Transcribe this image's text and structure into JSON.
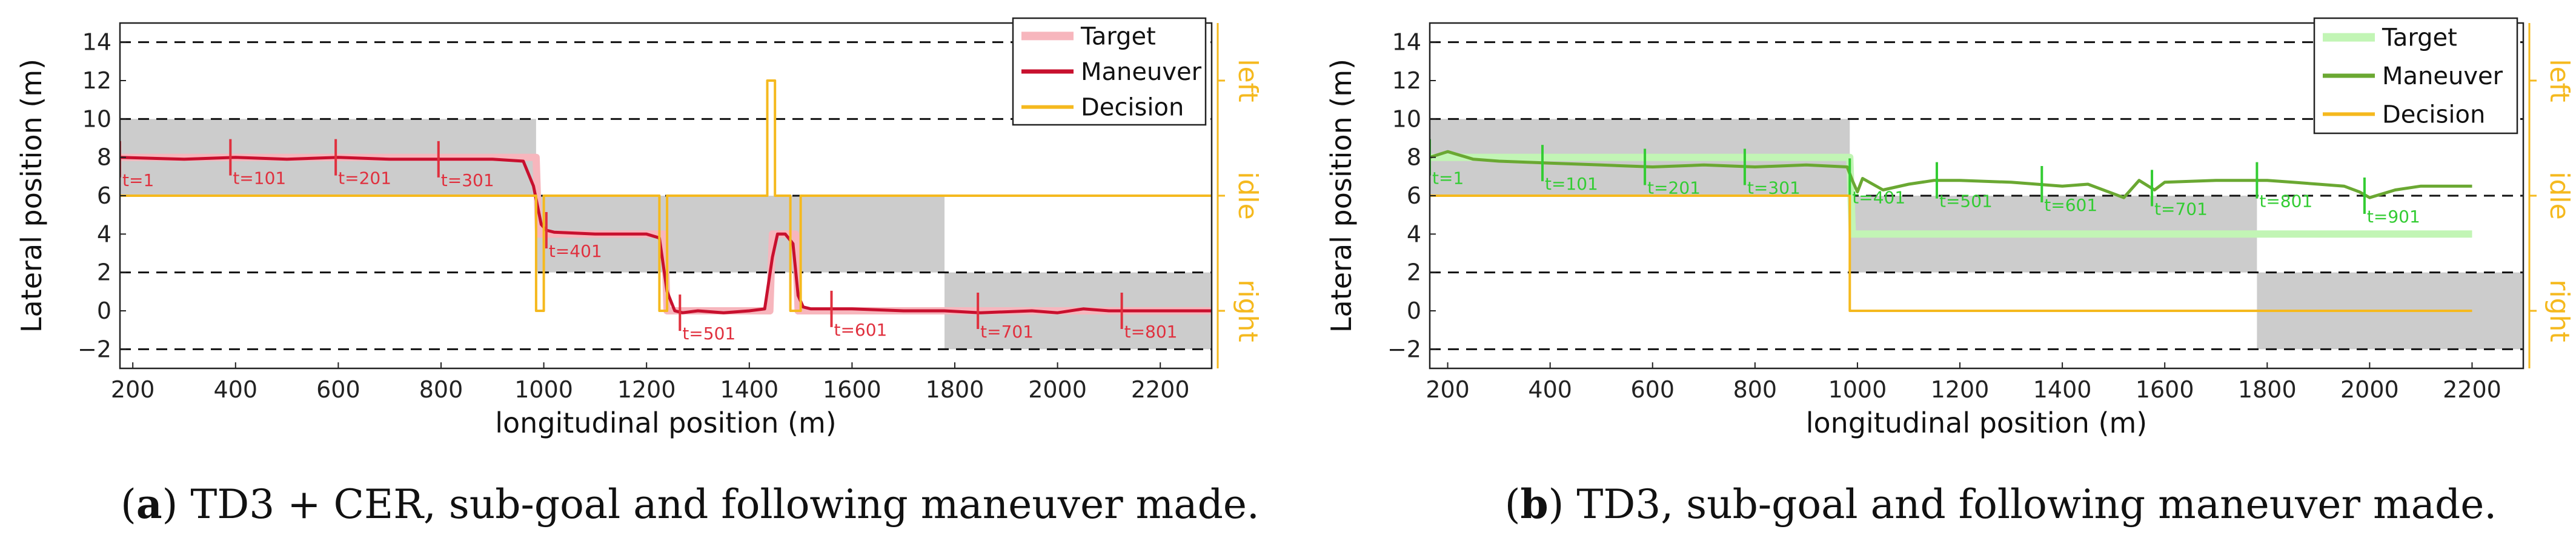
{
  "chart_data": [
    {
      "type": "line",
      "panel": "a",
      "caption_label": "a",
      "caption_text": "TD3 + CER, sub-goal and following maneuver made.",
      "xlabel": "longitudinal position (m)",
      "ylabel": "Lateral position (m)",
      "xlim": [
        175,
        2300
      ],
      "ylim": [
        -3,
        15
      ],
      "x_ticks": [
        200,
        400,
        600,
        800,
        1000,
        1200,
        1400,
        1600,
        1800,
        2000,
        2200
      ],
      "y_ticks": [
        -2,
        0,
        2,
        4,
        6,
        8,
        10,
        12,
        14
      ],
      "lane_lines": [
        -2,
        2,
        6,
        10,
        14
      ],
      "side_labels": [
        "left",
        "idle",
        "right"
      ],
      "legend": [
        "Target",
        "Maneuver",
        "Decision"
      ],
      "colors": {
        "target": "#f7b6bd",
        "maneuver": "#c8102e",
        "decision": "#f5b91e",
        "shade": "#cccccc",
        "tlabel": "#e0303e"
      },
      "shaded_regions": [
        {
          "x0": 175,
          "x1": 985,
          "y0": 6,
          "y1": 10
        },
        {
          "x0": 985,
          "x1": 1780,
          "y0": 2,
          "y1": 6
        },
        {
          "x0": 1780,
          "x1": 2300,
          "y0": -2,
          "y1": 2
        }
      ],
      "series": [
        {
          "name": "Target",
          "x": [
            175,
            985,
            990,
            1235,
            1240,
            1440,
            1445,
            1490,
            1495,
            2300
          ],
          "y": [
            8,
            8,
            4,
            4,
            0,
            0,
            4,
            4,
            0,
            0
          ]
        },
        {
          "name": "Maneuver",
          "x": [
            175,
            300,
            400,
            500,
            600,
            700,
            800,
            900,
            960,
            980,
            995,
            1005,
            1020,
            1100,
            1200,
            1225,
            1240,
            1255,
            1270,
            1300,
            1350,
            1400,
            1430,
            1445,
            1455,
            1470,
            1485,
            1495,
            1505,
            1520,
            1600,
            1700,
            1780,
            1850,
            1950,
            2000,
            2050,
            2100,
            2200,
            2300
          ],
          "y": [
            8.0,
            7.9,
            8.0,
            7.9,
            8.0,
            7.9,
            7.9,
            7.9,
            7.8,
            6.5,
            4.5,
            4.2,
            4.1,
            4.0,
            4.0,
            3.8,
            1.0,
            0.0,
            -0.1,
            0.0,
            -0.1,
            0.0,
            0.1,
            2.8,
            4.0,
            4.0,
            3.5,
            0.8,
            0.2,
            0.1,
            0.1,
            0.0,
            0.0,
            -0.1,
            0.0,
            -0.1,
            0.1,
            0.0,
            0.0,
            0.0
          ]
        },
        {
          "name": "Decision",
          "x": [
            175,
            985,
            985,
            1000,
            1000,
            1225,
            1225,
            1240,
            1240,
            1435,
            1435,
            1450,
            1450,
            1480,
            1480,
            1500,
            1500,
            2300
          ],
          "y": [
            6,
            6,
            0,
            0,
            6,
            6,
            0,
            0,
            6,
            6,
            12,
            12,
            6,
            6,
            0,
            0,
            6,
            6
          ]
        }
      ],
      "time_markers": [
        {
          "label": "t=1",
          "x": 175,
          "y": 7.9
        },
        {
          "label": "t=101",
          "x": 390,
          "y": 8.0
        },
        {
          "label": "t=201",
          "x": 595,
          "y": 8.0
        },
        {
          "label": "t=301",
          "x": 795,
          "y": 7.9
        },
        {
          "label": "t=401",
          "x": 1005,
          "y": 4.2
        },
        {
          "label": "t=501",
          "x": 1265,
          "y": -0.1
        },
        {
          "label": "t=601",
          "x": 1560,
          "y": 0.1
        },
        {
          "label": "t=701",
          "x": 1845,
          "y": 0.0
        },
        {
          "label": "t=801",
          "x": 2125,
          "y": 0.0
        }
      ]
    },
    {
      "type": "line",
      "panel": "b",
      "caption_label": "b",
      "caption_text": "TD3, sub-goal and following maneuver made.",
      "xlabel": "longitudinal position (m)",
      "ylabel": "Lateral position (m)",
      "xlim": [
        165,
        2300
      ],
      "ylim": [
        -3,
        15
      ],
      "x_ticks": [
        200,
        400,
        600,
        800,
        1000,
        1200,
        1400,
        1600,
        1800,
        2000,
        2200
      ],
      "y_ticks": [
        -2,
        0,
        2,
        4,
        6,
        8,
        10,
        12,
        14
      ],
      "lane_lines": [
        -2,
        2,
        6,
        10,
        14
      ],
      "side_labels": [
        "left",
        "idle",
        "right"
      ],
      "legend": [
        "Target",
        "Maneuver",
        "Decision"
      ],
      "colors": {
        "target": "#c2f5b5",
        "maneuver": "#6aa832",
        "decision": "#f5b91e",
        "shade": "#cccccc",
        "tlabel": "#33cc33"
      },
      "shaded_regions": [
        {
          "x0": 165,
          "x1": 985,
          "y0": 6,
          "y1": 10
        },
        {
          "x0": 985,
          "x1": 1780,
          "y0": 2,
          "y1": 6
        },
        {
          "x0": 1780,
          "x1": 2300,
          "y0": -2,
          "y1": 2
        }
      ],
      "series": [
        {
          "name": "Target",
          "x": [
            165,
            985,
            990,
            2200
          ],
          "y": [
            8,
            8,
            4,
            4
          ]
        },
        {
          "name": "Maneuver",
          "x": [
            165,
            200,
            250,
            300,
            400,
            500,
            600,
            700,
            800,
            900,
            980,
            990,
            1000,
            1010,
            1050,
            1100,
            1150,
            1200,
            1300,
            1350,
            1400,
            1450,
            1500,
            1520,
            1550,
            1580,
            1600,
            1700,
            1800,
            1850,
            1900,
            1950,
            1980,
            2000,
            2050,
            2100,
            2200
          ],
          "y": [
            8.0,
            8.3,
            7.9,
            7.8,
            7.7,
            7.6,
            7.5,
            7.6,
            7.5,
            7.6,
            7.5,
            6.8,
            6.2,
            6.9,
            6.3,
            6.6,
            6.8,
            6.8,
            6.7,
            6.6,
            6.5,
            6.6,
            6.1,
            5.9,
            6.8,
            6.3,
            6.7,
            6.8,
            6.8,
            6.7,
            6.6,
            6.5,
            6.2,
            5.9,
            6.3,
            6.5,
            6.5
          ]
        },
        {
          "name": "Decision",
          "x": [
            165,
            985,
            985,
            2200
          ],
          "y": [
            6,
            6,
            0,
            0
          ]
        }
      ],
      "time_markers": [
        {
          "label": "t=1",
          "x": 165,
          "y": 8.0
        },
        {
          "label": "t=101",
          "x": 385,
          "y": 7.7
        },
        {
          "label": "t=201",
          "x": 585,
          "y": 7.5
        },
        {
          "label": "t=301",
          "x": 780,
          "y": 7.5
        },
        {
          "label": "t=401",
          "x": 985,
          "y": 7.0
        },
        {
          "label": "t=501",
          "x": 1155,
          "y": 6.8
        },
        {
          "label": "t=601",
          "x": 1360,
          "y": 6.6
        },
        {
          "label": "t=701",
          "x": 1575,
          "y": 6.4
        },
        {
          "label": "t=801",
          "x": 1780,
          "y": 6.8
        },
        {
          "label": "t=901",
          "x": 1990,
          "y": 6.0
        }
      ]
    }
  ]
}
